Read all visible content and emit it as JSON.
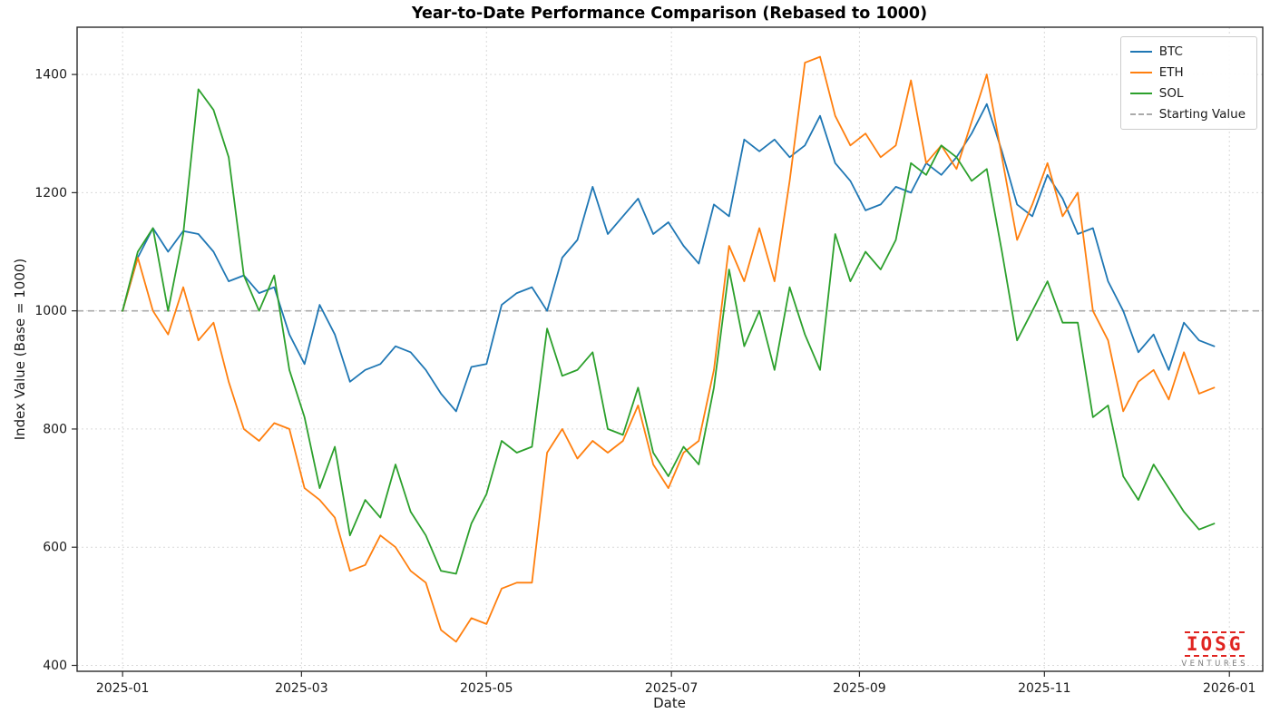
{
  "chart": {
    "title": "Year-to-Date Performance Comparison (Rebased to 1000)",
    "xlabel": "Date",
    "ylabel": "Index Value (Base = 1000)",
    "background": "#ffffff"
  },
  "legend": {
    "items": [
      {
        "label": "BTC",
        "color": "#1f77b4",
        "dash": false
      },
      {
        "label": "ETH",
        "color": "#ff7f0e",
        "dash": false
      },
      {
        "label": "SOL",
        "color": "#2ca02c",
        "dash": false
      },
      {
        "label": "Starting Value",
        "color": "#aaaaaa",
        "dash": true
      }
    ]
  },
  "logo": {
    "brand": "IOSG",
    "subtitle": "VENTURES",
    "color": "#e02420"
  },
  "chart_data": {
    "type": "line",
    "title": "Year-to-Date Performance Comparison (Rebased to 1000)",
    "xlabel": "Date",
    "ylabel": "Index Value (Base = 1000)",
    "start_date": "2025-01-01",
    "x_days": [
      0,
      5,
      10,
      15,
      20,
      25,
      30,
      35,
      40,
      45,
      50,
      55,
      60,
      65,
      70,
      75,
      80,
      85,
      90,
      95,
      100,
      105,
      110,
      115,
      120,
      125,
      130,
      135,
      140,
      145,
      150,
      155,
      160,
      165,
      170,
      175,
      180,
      185,
      190,
      195,
      200,
      205,
      210,
      215,
      220,
      225,
      230,
      235,
      240,
      245,
      250,
      255,
      260,
      265,
      270,
      275,
      280,
      285,
      290,
      295,
      300,
      305,
      310,
      315,
      320,
      325,
      330,
      335,
      340,
      345,
      350,
      355,
      360
    ],
    "series": [
      {
        "name": "BTC",
        "color": "#1f77b4",
        "values": [
          1000,
          1090,
          1140,
          1100,
          1135,
          1130,
          1100,
          1050,
          1060,
          1030,
          1040,
          960,
          910,
          1010,
          960,
          880,
          900,
          910,
          940,
          930,
          900,
          860,
          830,
          905,
          910,
          1010,
          1030,
          1040,
          1000,
          1090,
          1120,
          1210,
          1130,
          1160,
          1190,
          1130,
          1150,
          1110,
          1080,
          1180,
          1160,
          1290,
          1270,
          1290,
          1260,
          1280,
          1330,
          1250,
          1220,
          1170,
          1180,
          1210,
          1200,
          1250,
          1230,
          1260,
          1300,
          1350,
          1270,
          1180,
          1160,
          1230,
          1190,
          1130,
          1140,
          1050,
          1000,
          930,
          960,
          900,
          980,
          950,
          940
        ]
      },
      {
        "name": "ETH",
        "color": "#ff7f0e",
        "values": [
          1000,
          1090,
          1000,
          960,
          1040,
          950,
          980,
          880,
          800,
          780,
          810,
          800,
          700,
          680,
          650,
          560,
          570,
          620,
          600,
          560,
          540,
          460,
          440,
          480,
          470,
          530,
          540,
          540,
          760,
          800,
          750,
          780,
          760,
          780,
          840,
          740,
          700,
          760,
          780,
          900,
          1110,
          1050,
          1140,
          1050,
          1220,
          1420,
          1430,
          1330,
          1280,
          1300,
          1260,
          1280,
          1390,
          1250,
          1280,
          1240,
          1320,
          1400,
          1260,
          1120,
          1180,
          1250,
          1160,
          1200,
          1000,
          950,
          830,
          880,
          900,
          850,
          930,
          860,
          870
        ]
      },
      {
        "name": "SOL",
        "color": "#2ca02c",
        "values": [
          1000,
          1100,
          1140,
          1000,
          1130,
          1375,
          1340,
          1260,
          1060,
          1000,
          1060,
          900,
          820,
          700,
          770,
          620,
          680,
          650,
          740,
          660,
          620,
          560,
          555,
          640,
          690,
          780,
          760,
          770,
          970,
          890,
          900,
          930,
          800,
          790,
          870,
          760,
          720,
          770,
          740,
          870,
          1070,
          940,
          1000,
          900,
          1040,
          960,
          900,
          1130,
          1050,
          1100,
          1070,
          1120,
          1250,
          1230,
          1280,
          1260,
          1220,
          1240,
          1100,
          950,
          1000,
          1050,
          980,
          980,
          820,
          840,
          720,
          680,
          740,
          700,
          660,
          630,
          640
        ]
      }
    ],
    "baseline": {
      "label": "Starting Value",
      "value": 1000,
      "style": "dashed",
      "color": "#aaaaaa"
    },
    "xticks": [
      {
        "label": "2025-01",
        "day": 0
      },
      {
        "label": "2025-03",
        "day": 59
      },
      {
        "label": "2025-05",
        "day": 120
      },
      {
        "label": "2025-07",
        "day": 181
      },
      {
        "label": "2025-09",
        "day": 243
      },
      {
        "label": "2025-11",
        "day": 304
      },
      {
        "label": "2026-01",
        "day": 365
      }
    ],
    "yticks": [
      400,
      600,
      800,
      1000,
      1200,
      1400
    ],
    "xlim": [
      -15,
      376
    ],
    "ylim": [
      390,
      1480
    ],
    "grid": true,
    "grid_style": "dashed",
    "legend_position": "upper right"
  }
}
